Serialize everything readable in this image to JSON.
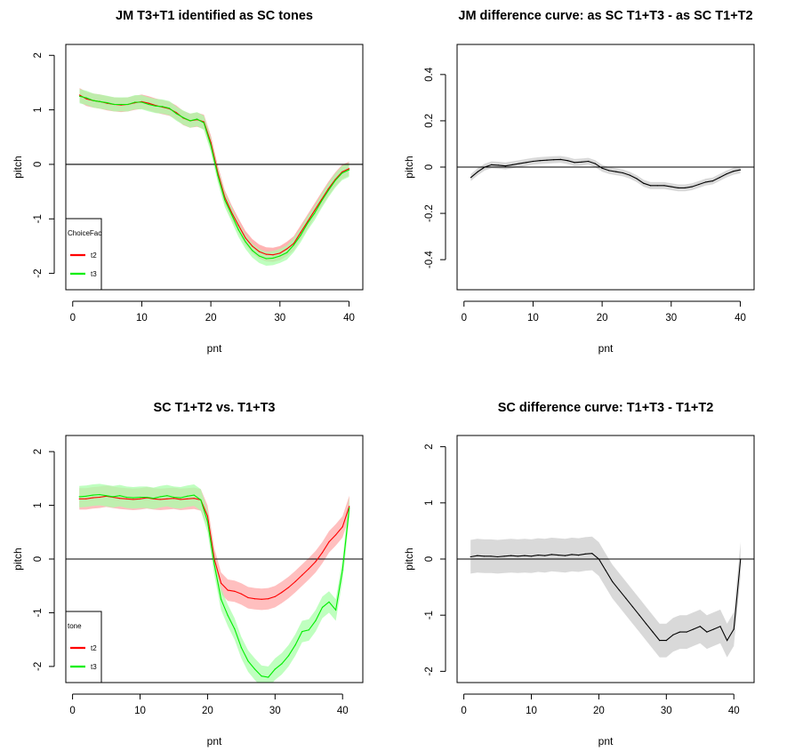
{
  "chart_data": [
    {
      "type": "line",
      "title": "JM T3+T1 identified as SC tones",
      "xlabel": "pnt",
      "ylabel": "pitch",
      "xlim": [
        -1,
        42
      ],
      "ylim": [
        -2.3,
        2.2
      ],
      "xticks": [
        0,
        10,
        20,
        30,
        40
      ],
      "yticks": [
        -2,
        -1,
        0,
        1,
        2
      ],
      "hline": 0,
      "legend": {
        "title": "ChoiceFac",
        "position": "bottom-left",
        "labels": [
          "t2",
          "t3"
        ]
      },
      "x": [
        1,
        2,
        3,
        4,
        5,
        6,
        7,
        8,
        9,
        10,
        11,
        12,
        13,
        14,
        15,
        16,
        17,
        18,
        19,
        20,
        21,
        22,
        23,
        24,
        25,
        26,
        27,
        28,
        29,
        30,
        31,
        32,
        33,
        34,
        35,
        36,
        37,
        38,
        39,
        40
      ],
      "series": [
        {
          "name": "t2",
          "color": "#ff0000",
          "band_color": "#ff9999",
          "band": 0.13,
          "values": [
            1.27,
            1.2,
            1.17,
            1.15,
            1.12,
            1.1,
            1.09,
            1.1,
            1.13,
            1.15,
            1.12,
            1.08,
            1.05,
            1.02,
            0.95,
            0.85,
            0.8,
            0.82,
            0.78,
            0.4,
            -0.15,
            -0.6,
            -0.88,
            -1.12,
            -1.35,
            -1.5,
            -1.6,
            -1.65,
            -1.66,
            -1.63,
            -1.55,
            -1.45,
            -1.25,
            -1.05,
            -0.85,
            -0.65,
            -0.45,
            -0.28,
            -0.14,
            -0.08
          ]
        },
        {
          "name": "t3",
          "color": "#00ee00",
          "band_color": "#aaffaa",
          "band": 0.13,
          "values": [
            1.25,
            1.22,
            1.17,
            1.15,
            1.13,
            1.1,
            1.1,
            1.1,
            1.14,
            1.14,
            1.1,
            1.07,
            1.06,
            1.03,
            0.93,
            0.86,
            0.8,
            0.83,
            0.76,
            0.35,
            -0.2,
            -0.65,
            -0.92,
            -1.2,
            -1.42,
            -1.58,
            -1.68,
            -1.73,
            -1.72,
            -1.68,
            -1.62,
            -1.48,
            -1.3,
            -1.08,
            -0.9,
            -0.68,
            -0.48,
            -0.3,
            -0.16,
            -0.1
          ]
        }
      ]
    },
    {
      "type": "line",
      "title": "JM difference curve: as SC T1+T3 - as SC T1+T2",
      "xlabel": "pnt",
      "ylabel": "pitch",
      "xlim": [
        -1,
        42
      ],
      "ylim": [
        -0.53,
        0.53
      ],
      "xticks": [
        0,
        10,
        20,
        30,
        40
      ],
      "yticks": [
        -0.4,
        -0.2,
        0,
        0.2,
        0.4
      ],
      "hline": 0,
      "x": [
        1,
        2,
        3,
        4,
        5,
        6,
        7,
        8,
        9,
        10,
        11,
        12,
        13,
        14,
        15,
        16,
        17,
        18,
        19,
        20,
        21,
        22,
        23,
        24,
        25,
        26,
        27,
        28,
        29,
        30,
        31,
        32,
        33,
        34,
        35,
        36,
        37,
        38,
        39,
        40
      ],
      "series": [
        {
          "name": "",
          "color": "#000000",
          "band_color": "#cccccc",
          "band": 0.015,
          "values": [
            -0.045,
            -0.02,
            0.0,
            0.01,
            0.008,
            0.005,
            0.01,
            0.015,
            0.02,
            0.025,
            0.028,
            0.03,
            0.032,
            0.033,
            0.028,
            0.02,
            0.022,
            0.025,
            0.015,
            -0.005,
            -0.015,
            -0.02,
            -0.025,
            -0.035,
            -0.05,
            -0.07,
            -0.08,
            -0.08,
            -0.08,
            -0.085,
            -0.09,
            -0.09,
            -0.085,
            -0.075,
            -0.065,
            -0.06,
            -0.045,
            -0.03,
            -0.018,
            -0.012
          ]
        }
      ]
    },
    {
      "type": "line",
      "title": "SC T1+T2 vs. T1+T3",
      "xlabel": "pnt",
      "ylabel": "pitch",
      "xlim": [
        -1,
        43
      ],
      "ylim": [
        -2.3,
        2.3
      ],
      "xticks": [
        0,
        10,
        20,
        30,
        40
      ],
      "yticks": [
        -2,
        -1,
        0,
        1,
        2
      ],
      "hline": 0,
      "legend": {
        "title": "tone",
        "position": "bottom-left",
        "labels": [
          "t2",
          "t3"
        ]
      },
      "x": [
        1,
        2,
        3,
        4,
        5,
        6,
        7,
        8,
        9,
        10,
        11,
        12,
        13,
        14,
        15,
        16,
        17,
        18,
        19,
        20,
        21,
        22,
        23,
        24,
        25,
        26,
        27,
        28,
        29,
        30,
        31,
        32,
        33,
        34,
        35,
        36,
        37,
        38,
        39,
        40,
        41
      ],
      "series": [
        {
          "name": "t2",
          "color": "#ff0000",
          "band_color": "#ffaaaa",
          "band": 0.2,
          "values": [
            1.12,
            1.12,
            1.14,
            1.15,
            1.17,
            1.15,
            1.13,
            1.12,
            1.11,
            1.12,
            1.14,
            1.12,
            1.11,
            1.12,
            1.13,
            1.11,
            1.12,
            1.13,
            1.1,
            0.8,
            0.0,
            -0.45,
            -0.58,
            -0.6,
            -0.65,
            -0.72,
            -0.74,
            -0.75,
            -0.74,
            -0.7,
            -0.62,
            -0.53,
            -0.42,
            -0.3,
            -0.18,
            -0.05,
            0.12,
            0.32,
            0.45,
            0.6,
            0.98
          ]
        },
        {
          "name": "t3",
          "color": "#00ee00",
          "band_color": "#aaffaa",
          "band": 0.2,
          "values": [
            1.16,
            1.17,
            1.19,
            1.2,
            1.18,
            1.16,
            1.18,
            1.15,
            1.14,
            1.15,
            1.15,
            1.13,
            1.16,
            1.18,
            1.15,
            1.14,
            1.17,
            1.19,
            1.1,
            0.7,
            -0.1,
            -0.75,
            -1.05,
            -1.3,
            -1.65,
            -1.9,
            -2.05,
            -2.18,
            -2.2,
            -2.05,
            -1.95,
            -1.8,
            -1.6,
            -1.35,
            -1.32,
            -1.15,
            -0.9,
            -0.8,
            -0.95,
            -0.2,
            0.95
          ]
        }
      ]
    },
    {
      "type": "line",
      "title": "SC difference curve: T1+T3 - T1+T2",
      "xlabel": "pnt",
      "ylabel": "pitch",
      "xlim": [
        -1,
        43
      ],
      "ylim": [
        -2.2,
        2.2
      ],
      "xticks": [
        0,
        10,
        20,
        30,
        40
      ],
      "yticks": [
        -2,
        -1,
        0,
        1,
        2
      ],
      "hline": 0,
      "x": [
        1,
        2,
        3,
        4,
        5,
        6,
        7,
        8,
        9,
        10,
        11,
        12,
        13,
        14,
        15,
        16,
        17,
        18,
        19,
        20,
        21,
        22,
        23,
        24,
        25,
        26,
        27,
        28,
        29,
        30,
        31,
        32,
        33,
        34,
        35,
        36,
        37,
        38,
        39,
        40,
        41
      ],
      "series": [
        {
          "name": "",
          "color": "#000000",
          "band_color": "#cccccc",
          "band": 0.3,
          "values": [
            0.04,
            0.06,
            0.05,
            0.05,
            0.04,
            0.05,
            0.06,
            0.05,
            0.06,
            0.05,
            0.07,
            0.06,
            0.08,
            0.07,
            0.06,
            0.08,
            0.07,
            0.09,
            0.1,
            0.0,
            -0.2,
            -0.4,
            -0.55,
            -0.7,
            -0.85,
            -1.0,
            -1.15,
            -1.3,
            -1.45,
            -1.45,
            -1.35,
            -1.3,
            -1.3,
            -1.25,
            -1.2,
            -1.3,
            -1.25,
            -1.2,
            -1.45,
            -1.25,
            0.0
          ]
        }
      ]
    }
  ]
}
